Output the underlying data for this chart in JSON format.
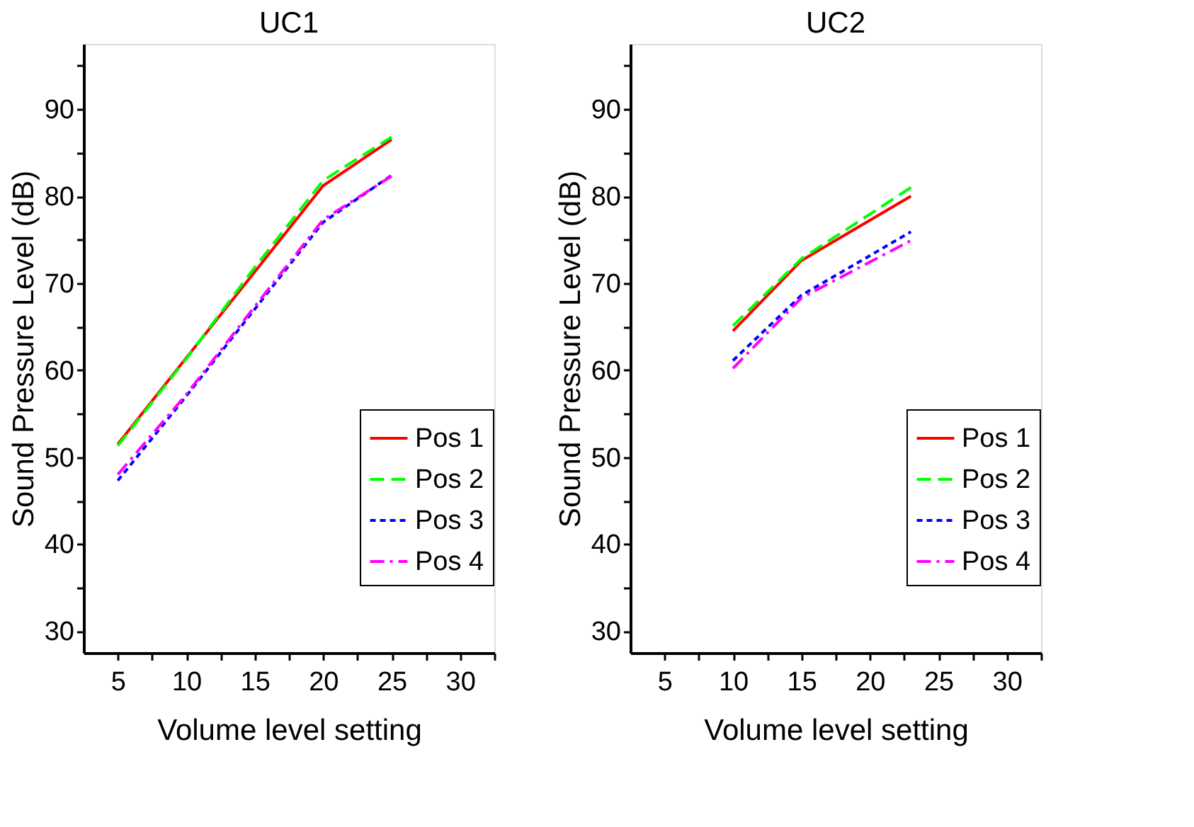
{
  "chart_data": [
    {
      "type": "line",
      "title": "UC1",
      "xlabel": "Volume level setting",
      "ylabel": "Sound Pressure Level (dB)",
      "xlim": [
        2.5,
        32.5
      ],
      "ylim": [
        27.5,
        97.5
      ],
      "xticks": [
        5,
        {
          "value": 7.5,
          "label": null
        },
        10,
        {
          "value": 12.5,
          "label": null
        },
        15,
        {
          "value": 17.5,
          "label": null
        },
        20,
        {
          "value": 22.5,
          "label": null
        },
        25,
        {
          "value": 27.5,
          "label": null
        },
        30,
        {
          "value": 32.5,
          "label": null
        }
      ],
      "yticks": [
        30,
        {
          "value": 35,
          "label": null
        },
        40,
        {
          "value": 45,
          "label": null
        },
        50,
        {
          "value": 55,
          "label": null
        },
        60,
        {
          "value": 65,
          "label": null
        },
        70,
        {
          "value": 75,
          "label": null
        },
        80,
        {
          "value": 85,
          "label": null
        },
        90,
        {
          "value": 95,
          "label": null
        }
      ],
      "x": [
        5,
        10,
        15,
        20,
        25
      ],
      "legend": "right",
      "grid": false,
      "series": [
        {
          "name": "Pos 1",
          "color": "#ff0000",
          "line_style": "solid",
          "values": [
            51.5,
            61.4,
            71.3,
            81.2,
            86.5
          ]
        },
        {
          "name": "Pos 2",
          "color": "#00ff00",
          "line_style": "dashed",
          "values": [
            51.3,
            61.3,
            71.8,
            81.8,
            86.8
          ]
        },
        {
          "name": "Pos 3",
          "color": "#0000ff",
          "line_style": "dotted",
          "values": [
            47.3,
            57.0,
            67.0,
            77.0,
            82.4
          ]
        },
        {
          "name": "Pos 4",
          "color": "#ff00ff",
          "line_style": "dashdot",
          "values": [
            48.0,
            57.2,
            67.3,
            77.3,
            82.3
          ]
        }
      ]
    },
    {
      "type": "line",
      "title": "UC2",
      "xlabel": "Volume level setting",
      "ylabel": "Sound Pressure Level (dB)",
      "xlim": [
        2.5,
        32.5
      ],
      "ylim": [
        27.5,
        97.5
      ],
      "xticks": [
        5,
        {
          "value": 7.5,
          "label": null
        },
        10,
        {
          "value": 12.5,
          "label": null
        },
        15,
        {
          "value": 17.5,
          "label": null
        },
        20,
        {
          "value": 22.5,
          "label": null
        },
        25,
        {
          "value": 27.5,
          "label": null
        },
        30,
        {
          "value": 32.5,
          "label": null
        }
      ],
      "yticks": [
        30,
        {
          "value": 35,
          "label": null
        },
        40,
        {
          "value": 45,
          "label": null
        },
        50,
        {
          "value": 55,
          "label": null
        },
        60,
        {
          "value": 65,
          "label": null
        },
        70,
        {
          "value": 75,
          "label": null
        },
        80,
        {
          "value": 85,
          "label": null
        },
        90,
        {
          "value": 95,
          "label": null
        }
      ],
      "x": [
        10,
        15,
        23
      ],
      "legend": "right",
      "grid": false,
      "series": [
        {
          "name": "Pos 1",
          "color": "#ff0000",
          "line_style": "solid",
          "values": [
            64.5,
            72.6,
            80.0
          ]
        },
        {
          "name": "Pos 2",
          "color": "#00ff00",
          "line_style": "dashed",
          "values": [
            65.1,
            72.8,
            81.0
          ]
        },
        {
          "name": "Pos 3",
          "color": "#0000ff",
          "line_style": "dotted",
          "values": [
            61.1,
            68.6,
            75.9
          ]
        },
        {
          "name": "Pos 4",
          "color": "#ff00ff",
          "line_style": "dashdot",
          "values": [
            60.2,
            68.3,
            74.9
          ]
        }
      ]
    }
  ]
}
